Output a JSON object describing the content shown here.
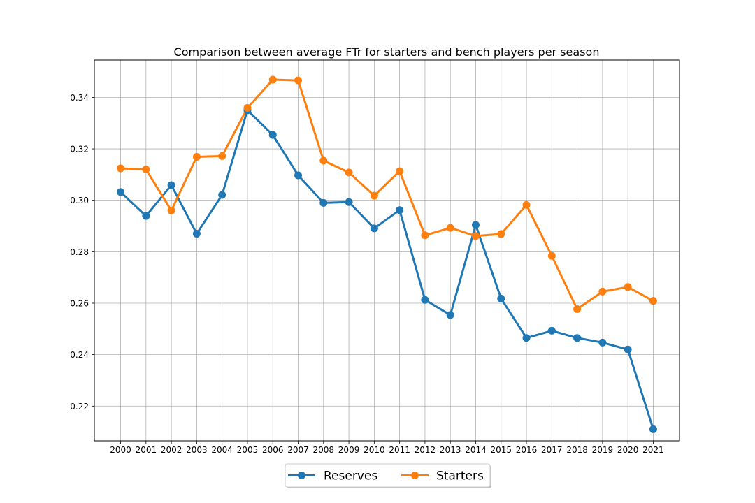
{
  "chart_data": {
    "type": "line",
    "title": "Comparison between average FTr for starters and bench players per season",
    "xlabel": "",
    "ylabel": "",
    "x": [
      "2000",
      "2001",
      "2002",
      "2003",
      "2004",
      "2005",
      "2006",
      "2007",
      "2008",
      "2009",
      "2010",
      "2011",
      "2012",
      "2013",
      "2014",
      "2015",
      "2016",
      "2017",
      "2018",
      "2019",
      "2020",
      "2021"
    ],
    "ylim": [
      0.2065,
      0.3545
    ],
    "yticks": [
      0.22,
      0.24,
      0.26,
      0.28,
      0.3,
      0.32,
      0.34
    ],
    "ytick_labels": [
      "0.22",
      "0.24",
      "0.26",
      "0.28",
      "0.30",
      "0.32",
      "0.34"
    ],
    "grid": true,
    "legend_position": "bottom-center",
    "series": [
      {
        "name": "Reserves",
        "color": "#1f77b4",
        "values": [
          0.3032,
          0.2939,
          0.3059,
          0.287,
          0.3021,
          0.335,
          0.3254,
          0.3097,
          0.299,
          0.2993,
          0.2891,
          0.2962,
          0.2613,
          0.2554,
          0.2904,
          0.2618,
          0.2465,
          0.2493,
          0.2465,
          0.2447,
          0.242,
          0.211
        ]
      },
      {
        "name": "Starters",
        "color": "#ff7f0e",
        "values": [
          0.3124,
          0.312,
          0.296,
          0.3169,
          0.3172,
          0.3359,
          0.3469,
          0.3466,
          0.3154,
          0.3108,
          0.3018,
          0.3113,
          0.2864,
          0.2893,
          0.2861,
          0.2869,
          0.2982,
          0.2784,
          0.2577,
          0.2645,
          0.2663,
          0.2609
        ]
      }
    ]
  }
}
